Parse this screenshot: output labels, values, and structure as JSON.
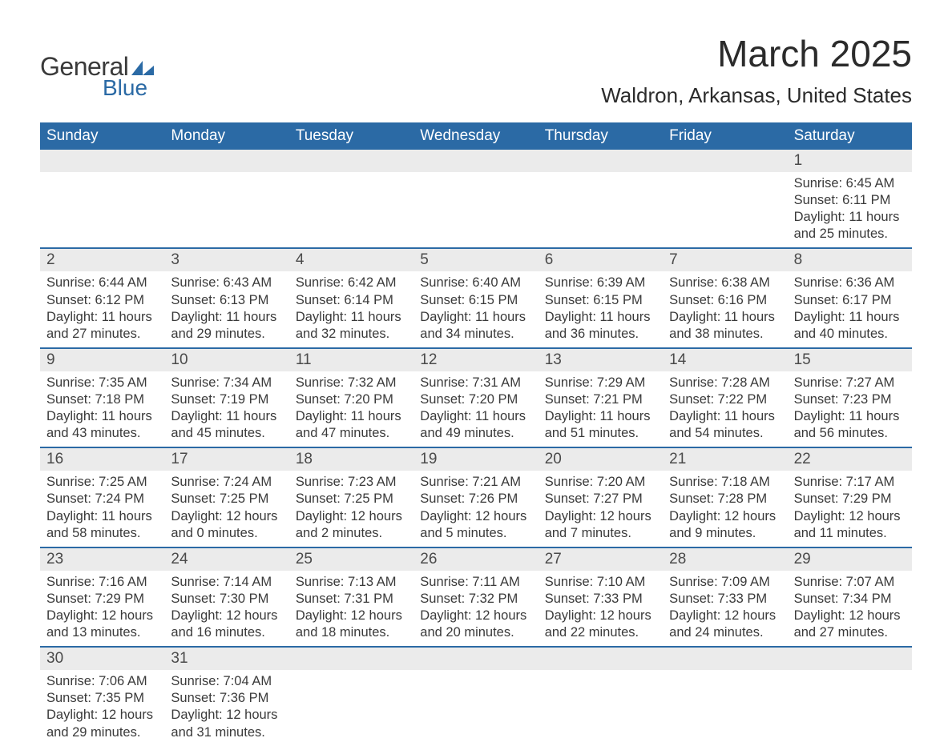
{
  "logo": {
    "text1": "General",
    "text2": "Blue",
    "shape_color": "#2b6aa5"
  },
  "title": "March 2025",
  "location": "Waldron, Arkansas, United States",
  "colors": {
    "header_bg": "#2b6aa5",
    "header_text": "#ffffff",
    "daynum_bg": "#ebebeb",
    "text": "#3a3a3a",
    "rule": "#2b6aa5"
  },
  "day_names": [
    "Sunday",
    "Monday",
    "Tuesday",
    "Wednesday",
    "Thursday",
    "Friday",
    "Saturday"
  ],
  "weeks": [
    [
      {},
      {},
      {},
      {},
      {},
      {},
      {
        "n": "1",
        "sr": "Sunrise: 6:45 AM",
        "ss": "Sunset: 6:11 PM",
        "d1": "Daylight: 11 hours",
        "d2": "and 25 minutes."
      }
    ],
    [
      {
        "n": "2",
        "sr": "Sunrise: 6:44 AM",
        "ss": "Sunset: 6:12 PM",
        "d1": "Daylight: 11 hours",
        "d2": "and 27 minutes."
      },
      {
        "n": "3",
        "sr": "Sunrise: 6:43 AM",
        "ss": "Sunset: 6:13 PM",
        "d1": "Daylight: 11 hours",
        "d2": "and 29 minutes."
      },
      {
        "n": "4",
        "sr": "Sunrise: 6:42 AM",
        "ss": "Sunset: 6:14 PM",
        "d1": "Daylight: 11 hours",
        "d2": "and 32 minutes."
      },
      {
        "n": "5",
        "sr": "Sunrise: 6:40 AM",
        "ss": "Sunset: 6:15 PM",
        "d1": "Daylight: 11 hours",
        "d2": "and 34 minutes."
      },
      {
        "n": "6",
        "sr": "Sunrise: 6:39 AM",
        "ss": "Sunset: 6:15 PM",
        "d1": "Daylight: 11 hours",
        "d2": "and 36 minutes."
      },
      {
        "n": "7",
        "sr": "Sunrise: 6:38 AM",
        "ss": "Sunset: 6:16 PM",
        "d1": "Daylight: 11 hours",
        "d2": "and 38 minutes."
      },
      {
        "n": "8",
        "sr": "Sunrise: 6:36 AM",
        "ss": "Sunset: 6:17 PM",
        "d1": "Daylight: 11 hours",
        "d2": "and 40 minutes."
      }
    ],
    [
      {
        "n": "9",
        "sr": "Sunrise: 7:35 AM",
        "ss": "Sunset: 7:18 PM",
        "d1": "Daylight: 11 hours",
        "d2": "and 43 minutes."
      },
      {
        "n": "10",
        "sr": "Sunrise: 7:34 AM",
        "ss": "Sunset: 7:19 PM",
        "d1": "Daylight: 11 hours",
        "d2": "and 45 minutes."
      },
      {
        "n": "11",
        "sr": "Sunrise: 7:32 AM",
        "ss": "Sunset: 7:20 PM",
        "d1": "Daylight: 11 hours",
        "d2": "and 47 minutes."
      },
      {
        "n": "12",
        "sr": "Sunrise: 7:31 AM",
        "ss": "Sunset: 7:20 PM",
        "d1": "Daylight: 11 hours",
        "d2": "and 49 minutes."
      },
      {
        "n": "13",
        "sr": "Sunrise: 7:29 AM",
        "ss": "Sunset: 7:21 PM",
        "d1": "Daylight: 11 hours",
        "d2": "and 51 minutes."
      },
      {
        "n": "14",
        "sr": "Sunrise: 7:28 AM",
        "ss": "Sunset: 7:22 PM",
        "d1": "Daylight: 11 hours",
        "d2": "and 54 minutes."
      },
      {
        "n": "15",
        "sr": "Sunrise: 7:27 AM",
        "ss": "Sunset: 7:23 PM",
        "d1": "Daylight: 11 hours",
        "d2": "and 56 minutes."
      }
    ],
    [
      {
        "n": "16",
        "sr": "Sunrise: 7:25 AM",
        "ss": "Sunset: 7:24 PM",
        "d1": "Daylight: 11 hours",
        "d2": "and 58 minutes."
      },
      {
        "n": "17",
        "sr": "Sunrise: 7:24 AM",
        "ss": "Sunset: 7:25 PM",
        "d1": "Daylight: 12 hours",
        "d2": "and 0 minutes."
      },
      {
        "n": "18",
        "sr": "Sunrise: 7:23 AM",
        "ss": "Sunset: 7:25 PM",
        "d1": "Daylight: 12 hours",
        "d2": "and 2 minutes."
      },
      {
        "n": "19",
        "sr": "Sunrise: 7:21 AM",
        "ss": "Sunset: 7:26 PM",
        "d1": "Daylight: 12 hours",
        "d2": "and 5 minutes."
      },
      {
        "n": "20",
        "sr": "Sunrise: 7:20 AM",
        "ss": "Sunset: 7:27 PM",
        "d1": "Daylight: 12 hours",
        "d2": "and 7 minutes."
      },
      {
        "n": "21",
        "sr": "Sunrise: 7:18 AM",
        "ss": "Sunset: 7:28 PM",
        "d1": "Daylight: 12 hours",
        "d2": "and 9 minutes."
      },
      {
        "n": "22",
        "sr": "Sunrise: 7:17 AM",
        "ss": "Sunset: 7:29 PM",
        "d1": "Daylight: 12 hours",
        "d2": "and 11 minutes."
      }
    ],
    [
      {
        "n": "23",
        "sr": "Sunrise: 7:16 AM",
        "ss": "Sunset: 7:29 PM",
        "d1": "Daylight: 12 hours",
        "d2": "and 13 minutes."
      },
      {
        "n": "24",
        "sr": "Sunrise: 7:14 AM",
        "ss": "Sunset: 7:30 PM",
        "d1": "Daylight: 12 hours",
        "d2": "and 16 minutes."
      },
      {
        "n": "25",
        "sr": "Sunrise: 7:13 AM",
        "ss": "Sunset: 7:31 PM",
        "d1": "Daylight: 12 hours",
        "d2": "and 18 minutes."
      },
      {
        "n": "26",
        "sr": "Sunrise: 7:11 AM",
        "ss": "Sunset: 7:32 PM",
        "d1": "Daylight: 12 hours",
        "d2": "and 20 minutes."
      },
      {
        "n": "27",
        "sr": "Sunrise: 7:10 AM",
        "ss": "Sunset: 7:33 PM",
        "d1": "Daylight: 12 hours",
        "d2": "and 22 minutes."
      },
      {
        "n": "28",
        "sr": "Sunrise: 7:09 AM",
        "ss": "Sunset: 7:33 PM",
        "d1": "Daylight: 12 hours",
        "d2": "and 24 minutes."
      },
      {
        "n": "29",
        "sr": "Sunrise: 7:07 AM",
        "ss": "Sunset: 7:34 PM",
        "d1": "Daylight: 12 hours",
        "d2": "and 27 minutes."
      }
    ],
    [
      {
        "n": "30",
        "sr": "Sunrise: 7:06 AM",
        "ss": "Sunset: 7:35 PM",
        "d1": "Daylight: 12 hours",
        "d2": "and 29 minutes."
      },
      {
        "n": "31",
        "sr": "Sunrise: 7:04 AM",
        "ss": "Sunset: 7:36 PM",
        "d1": "Daylight: 12 hours",
        "d2": "and 31 minutes."
      },
      {},
      {},
      {},
      {},
      {}
    ]
  ]
}
